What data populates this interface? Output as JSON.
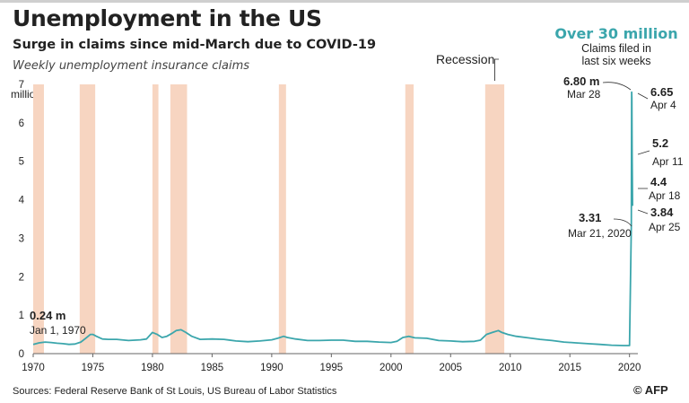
{
  "header": {
    "title": "Unemployment in the US",
    "subtitle": "Surge in claims since mid-March due to COVID-19",
    "caption": "Weekly unemployment insurance claims"
  },
  "highlight": {
    "headline": "Over 30 million",
    "subline_1": "Claims filed in",
    "subline_2": "last six weeks"
  },
  "footer": {
    "source": "Sources: Federal Reserve Bank of St Louis, US Bureau of Labor Statistics",
    "credit": "© AFP"
  },
  "colors": {
    "line": "#3ba6ac",
    "recession": "#f7d5c1",
    "highlight_text": "#3ba6ac"
  },
  "chart_data": {
    "type": "line",
    "title": "Unemployment in the US",
    "subtitle": "Surge in claims since mid-March due to COVID-19",
    "ylabel": "million",
    "unit_label": "million",
    "xlim": [
      1970,
      2020.4
    ],
    "ylim": [
      0,
      7
    ],
    "x_ticks": [
      1970,
      1975,
      1980,
      1985,
      1990,
      1995,
      2000,
      2005,
      2010,
      2015,
      2020
    ],
    "y_ticks": [
      1,
      2,
      3,
      4,
      5,
      6,
      7
    ],
    "grid": false,
    "series": [
      {
        "x": [
          1970.0,
          1970.5,
          1971.0,
          1971.5,
          1972.0,
          1972.5,
          1973.0,
          1973.5,
          1974.0,
          1974.4,
          1974.8,
          1975.0,
          1975.3,
          1975.8,
          1976.3,
          1977.0,
          1978.0,
          1979.0,
          1979.5,
          1980.0,
          1980.4,
          1980.8,
          1981.2,
          1981.6,
          1982.0,
          1982.4,
          1982.8,
          1983.3,
          1984.0,
          1985.0,
          1986.0,
          1987.0,
          1988.0,
          1989.0,
          1990.0,
          1990.5,
          1991.0,
          1991.3,
          1992.0,
          1993.0,
          1994.0,
          1995.0,
          1996.0,
          1997.0,
          1998.0,
          1999.0,
          2000.0,
          2000.5,
          2001.0,
          2001.5,
          2002.0,
          2003.0,
          2004.0,
          2005.0,
          2006.0,
          2007.0,
          2007.5,
          2008.0,
          2008.5,
          2009.0,
          2009.3,
          2009.8,
          2010.5,
          2011.5,
          2012.5,
          2013.5,
          2014.5,
          2015.5,
          2016.5,
          2017.5,
          2018.5,
          2019.5,
          2020.0,
          2020.15,
          2020.18,
          2020.2,
          2020.22,
          2020.24,
          2020.26
        ],
        "values": [
          0.24,
          0.28,
          0.3,
          0.29,
          0.27,
          0.26,
          0.24,
          0.25,
          0.3,
          0.4,
          0.5,
          0.5,
          0.45,
          0.38,
          0.37,
          0.37,
          0.34,
          0.36,
          0.38,
          0.55,
          0.5,
          0.42,
          0.45,
          0.52,
          0.6,
          0.62,
          0.55,
          0.45,
          0.37,
          0.38,
          0.37,
          0.33,
          0.31,
          0.33,
          0.36,
          0.4,
          0.45,
          0.42,
          0.38,
          0.34,
          0.34,
          0.35,
          0.35,
          0.32,
          0.32,
          0.3,
          0.29,
          0.32,
          0.42,
          0.45,
          0.41,
          0.4,
          0.34,
          0.33,
          0.31,
          0.32,
          0.35,
          0.5,
          0.55,
          0.6,
          0.55,
          0.5,
          0.45,
          0.41,
          0.37,
          0.34,
          0.3,
          0.28,
          0.26,
          0.24,
          0.22,
          0.21,
          0.21,
          3.31,
          6.8,
          6.65,
          5.2,
          4.4,
          3.84
        ]
      }
    ],
    "recessions": [
      [
        1970.0,
        1970.9
      ],
      [
        1973.9,
        1975.2
      ],
      [
        1980.0,
        1980.5
      ],
      [
        1981.5,
        1982.9
      ],
      [
        1990.6,
        1991.2
      ],
      [
        2001.2,
        2001.9
      ],
      [
        2007.9,
        2009.5
      ]
    ],
    "recession_label": "Recession",
    "annotations": [
      {
        "value": "0.24 m",
        "date": "Jan 1, 1970"
      },
      {
        "value": "6.80 m",
        "date": "Mar 28"
      },
      {
        "value": "3.31",
        "date": "Mar 21, 2020"
      },
      {
        "value": "6.65",
        "date": "Apr 4"
      },
      {
        "value": "5.2",
        "date": "Apr 11"
      },
      {
        "value": "4.4",
        "date": "Apr 18"
      },
      {
        "value": "3.84",
        "date": "Apr 25"
      }
    ]
  }
}
